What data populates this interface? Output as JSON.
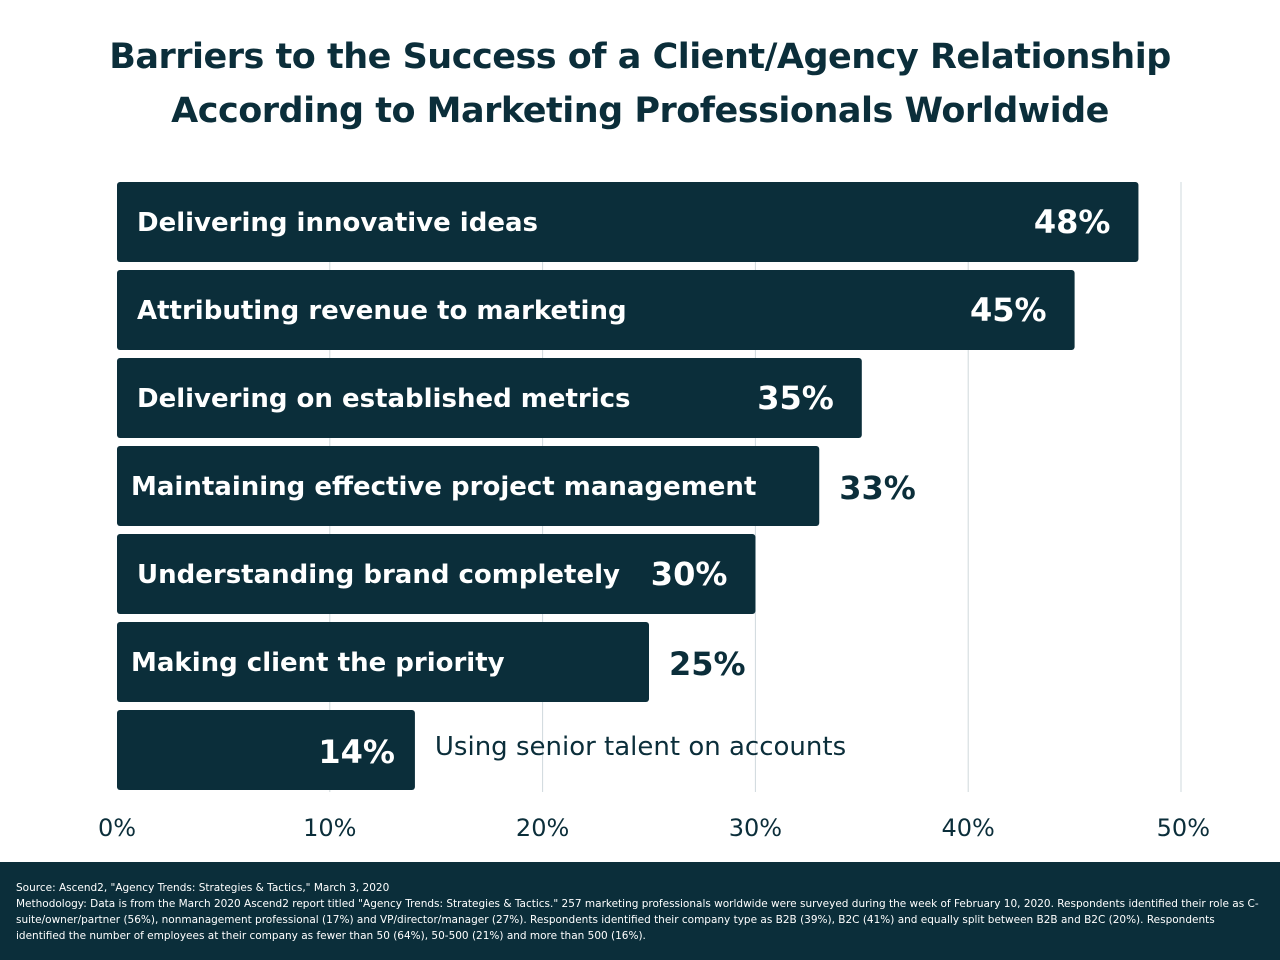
{
  "chart_data": {
    "type": "bar",
    "orientation": "horizontal",
    "title_lines": [
      "Barriers to the Success of a Client/Agency Relationship",
      "According to Marketing Professionals Worldwide"
    ],
    "categories": [
      "Delivering innovative ideas",
      "Attributing revenue to marketing",
      "Delivering on established metrics",
      "Maintaining effective project management",
      "Understanding brand completely",
      "Making client the priority",
      "Using senior talent on accounts"
    ],
    "values": [
      48,
      45,
      35,
      33,
      30,
      25,
      14
    ],
    "value_labels": [
      "48%",
      "45%",
      "35%",
      "33%",
      "30%",
      "25%",
      "14%"
    ],
    "x_ticks": [
      0,
      10,
      20,
      30,
      40,
      50
    ],
    "x_tick_labels": [
      "0%",
      "10%",
      "20%",
      "30%",
      "40%",
      "50%"
    ],
    "xlim": [
      0,
      50
    ],
    "grid": "vertical",
    "bar_color": "#0b2e3a",
    "label_color_inside": "#ffffff",
    "label_color_outside": "#0b2e3a"
  },
  "footer": {
    "source": "Source: Ascend2, \"Agency Trends: Strategies & Tactics,\" March 3, 2020",
    "methodology": "Methodology: Data is from the March 2020 Ascend2 report titled \"Agency Trends: Strategies & Tactics.\" 257 marketing professionals worldwide were surveyed during the week of February 10, 2020. Respondents identified their role as C-suite/owner/partner (56%), nonmanagement professional (17%) and VP/director/manager (27%). Respondents identified their company type as B2B (39%), B2C (41%) and equally split between B2B and B2C (20%). Respondents identified the number of employees at their company as fewer than 50 (64%), 50-500 (21%) and more than 500 (16%)."
  }
}
